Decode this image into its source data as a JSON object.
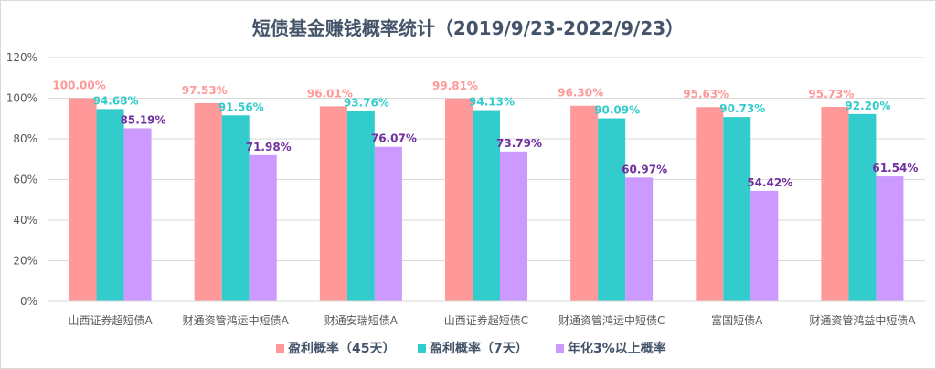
{
  "chart_data": {
    "type": "bar",
    "title": "短债基金赚钱概率统计（2019/9/23-2022/9/23）",
    "categories": [
      "山西证券超短债A",
      "财通资管鸿运中短债A",
      "财通安瑞短债A",
      "山西证券超短债C",
      "财通资管鸿运中短债C",
      "富国短债A",
      "财通资管鸿益中短债A"
    ],
    "series": [
      {
        "name": "盈利概率（45天）",
        "color": "#FF9999",
        "label_color": "#FF9999",
        "values": [
          100.0,
          97.53,
          96.01,
          99.81,
          96.3,
          95.63,
          95.73
        ]
      },
      {
        "name": "盈利概率（7天）",
        "color": "#33CCCC",
        "label_color": "#33CCCC",
        "values": [
          94.68,
          91.56,
          93.76,
          94.13,
          90.09,
          90.73,
          92.2
        ]
      },
      {
        "name": "年化3%以上概率",
        "color": "#CC99FF",
        "label_color": "#7030A0",
        "values": [
          85.19,
          71.98,
          76.07,
          73.79,
          60.97,
          54.42,
          61.54
        ]
      }
    ],
    "yticks": [
      "0%",
      "20%",
      "40%",
      "60%",
      "80%",
      "100%",
      "120%"
    ],
    "ylim": [
      0,
      120
    ],
    "grid": true,
    "legend": "bottom"
  }
}
